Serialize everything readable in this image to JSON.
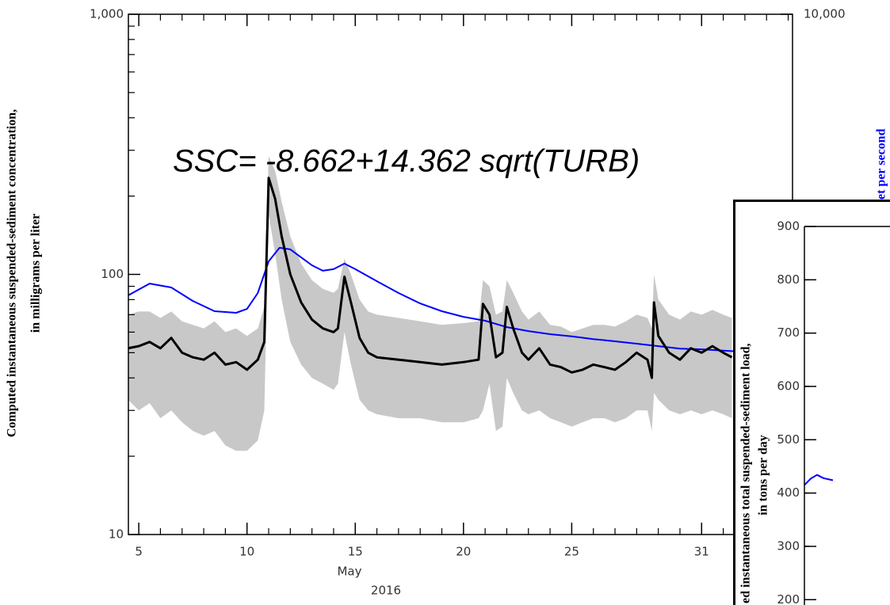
{
  "chart_data": [
    {
      "type": "line",
      "annotation": "SSC= -8.662+14.362 sqrt(TURB)",
      "ylabel": [
        "Computed instantaneous suspended-sediment concentration,",
        "in milligrams per liter"
      ],
      "y2label": "et per second",
      "xlabel": "May",
      "xlabel2": "2016",
      "xlim": [
        4.52,
        35.2
      ],
      "xticks": [
        5,
        10,
        15,
        20,
        25,
        31
      ],
      "xminorticks": [
        6,
        7,
        8,
        9,
        11,
        12,
        13,
        14,
        16,
        17,
        18,
        19,
        21,
        22,
        23,
        24,
        26,
        27,
        28,
        29,
        30,
        32,
        33,
        34,
        35
      ],
      "ylog": true,
      "ylim": [
        10,
        1000
      ],
      "yticks": [
        10,
        100,
        {
          "value": 1000,
          "label": "1,000"
        }
      ],
      "yminorticks": [
        20,
        30,
        40,
        50,
        60,
        70,
        80,
        90,
        200,
        300,
        400,
        500,
        600,
        700,
        800,
        900
      ],
      "y2log": true,
      "y2lim": [
        10,
        10000
      ],
      "y2ticks": [
        {
          "value": 10000,
          "label": "10,000"
        }
      ],
      "band": {
        "color": "#c8c8c8",
        "upper": [
          70,
          72,
          72,
          68,
          72,
          66,
          64,
          62,
          66,
          60,
          62,
          58,
          62,
          75,
          285,
          250,
          190,
          140,
          110,
          95,
          88,
          85,
          88,
          115,
          100,
          80,
          72,
          70,
          68,
          66,
          64,
          65,
          66,
          95,
          90,
          70,
          72,
          95,
          85,
          72,
          67,
          72,
          64,
          63,
          60,
          62,
          64,
          64,
          63,
          66,
          70,
          68,
          62,
          100,
          80,
          70,
          67,
          72,
          70,
          73,
          70,
          68
        ],
        "lower": [
          33,
          30,
          32,
          28,
          30,
          27,
          25,
          24,
          25,
          22,
          21,
          21,
          23,
          30,
          170,
          120,
          80,
          55,
          45,
          40,
          38,
          36,
          38,
          60,
          45,
          33,
          30,
          29,
          28,
          28,
          27,
          27,
          28,
          30,
          38,
          25,
          26,
          40,
          35,
          30,
          29,
          30,
          28,
          27,
          26,
          27,
          28,
          28,
          27,
          28,
          30,
          30,
          25,
          35,
          33,
          30,
          29,
          30,
          29,
          30,
          29,
          28
        ]
      },
      "series": [
        {
          "color": "#0000ff",
          "axis": "y2",
          "x": [
            4.5,
            5.5,
            6.5,
            7.5,
            8.5,
            9.5,
            10,
            10.5,
            11,
            11.5,
            12,
            13,
            13.5,
            14,
            14.5,
            15,
            16,
            17,
            18,
            19,
            20,
            21,
            22,
            23,
            24,
            25,
            26,
            27,
            28,
            29,
            30,
            31,
            32,
            33,
            34,
            35
          ],
          "values": [
            239,
            280,
            266,
            222,
            194,
            190,
            200,
            247,
            376,
            450,
            441,
            357,
            332,
            339,
            365,
            339,
            289,
            247,
            215,
            194,
            180,
            171,
            157,
            149,
            143,
            139,
            134,
            130,
            126,
            122,
            118,
            117,
            115,
            113,
            112,
            111
          ]
        },
        {
          "color": "#000000",
          "x": [
            4.5,
            5,
            5.5,
            6,
            6.5,
            7,
            7.5,
            8,
            8.5,
            9,
            9.5,
            10,
            10.5,
            10.8,
            11,
            11.3,
            11.6,
            12,
            12.5,
            13,
            13.5,
            14,
            14.2,
            14.5,
            14.8,
            15.2,
            15.6,
            16,
            17,
            18,
            19,
            20,
            20.7,
            20.9,
            21.2,
            21.5,
            21.8,
            22,
            22.3,
            22.7,
            23,
            23.5,
            24,
            24.5,
            25,
            25.5,
            26,
            26.5,
            27,
            27.5,
            28,
            28.5,
            28.7,
            28.8,
            29,
            29.5,
            30,
            30.5,
            31,
            31.5,
            32,
            32.4
          ],
          "values": [
            52,
            53,
            55,
            52,
            57,
            50,
            48,
            47,
            50,
            45,
            46,
            43,
            47,
            55,
            235,
            195,
            140,
            100,
            78,
            67,
            62,
            60,
            62,
            98,
            78,
            57,
            50,
            48,
            47,
            46,
            45,
            46,
            47,
            77,
            70,
            48,
            50,
            75,
            62,
            50,
            47,
            52,
            45,
            44,
            42,
            43,
            45,
            44,
            43,
            46,
            50,
            47,
            40,
            78,
            58,
            50,
            47,
            52,
            50,
            53,
            50,
            48
          ]
        }
      ]
    },
    {
      "type": "line",
      "ylabel": [
        "ed instantaneous total suspended-sediment load,",
        "in tons per day"
      ],
      "xlim": [
        0,
        13.5
      ],
      "ylim": [
        190,
        900
      ],
      "yticks": [
        200,
        300,
        400,
        500,
        600,
        700,
        800,
        900
      ],
      "series": [
        {
          "color": "#0000ff",
          "x": [
            0,
            1,
            2,
            3,
            4.5
          ],
          "values": [
            415,
            427,
            434,
            428,
            424
          ]
        }
      ]
    }
  ]
}
